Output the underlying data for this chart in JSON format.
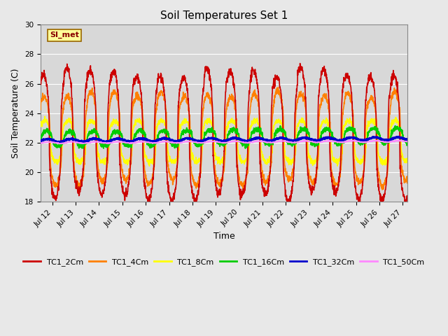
{
  "title": "Soil Temperatures Set 1",
  "xlabel": "Time",
  "ylabel": "Soil Temperature (C)",
  "ylim": [
    18,
    30
  ],
  "yticks": [
    18,
    20,
    22,
    24,
    26,
    28,
    30
  ],
  "xlim_days": [
    11.5,
    27.2
  ],
  "xtick_days": [
    12,
    13,
    14,
    15,
    16,
    17,
    18,
    19,
    20,
    21,
    22,
    23,
    24,
    25,
    26,
    27
  ],
  "xtick_labels": [
    "Jul 12",
    "Jul 13",
    "Jul 14",
    "Jul 15",
    "Jul 16",
    "Jul 17",
    "Jul 18",
    "Jul 19",
    "Jul 20",
    "Jul 21",
    "Jul 22",
    "Jul 23",
    "Jul 24",
    "Jul 25",
    "Jul 26",
    "Jul 27"
  ],
  "series_colors": {
    "TC1_2Cm": "#cc0000",
    "TC1_4Cm": "#ff8000",
    "TC1_8Cm": "#ffff00",
    "TC1_16Cm": "#00cc00",
    "TC1_32Cm": "#0000cc",
    "TC1_50Cm": "#ff88ff"
  },
  "series_linewidths": {
    "TC1_2Cm": 1.2,
    "TC1_4Cm": 1.2,
    "TC1_8Cm": 1.2,
    "TC1_16Cm": 1.5,
    "TC1_32Cm": 2.0,
    "TC1_50Cm": 1.2
  },
  "legend_label": "SI_met",
  "legend_bg": "#ffff99",
  "legend_border": "#996600",
  "bg_color": "#e8e8e8",
  "plot_bg_color": "#d8d8d8",
  "grid_color": "#ffffff",
  "title_fontsize": 11,
  "label_fontsize": 9,
  "tick_fontsize": 7.5
}
